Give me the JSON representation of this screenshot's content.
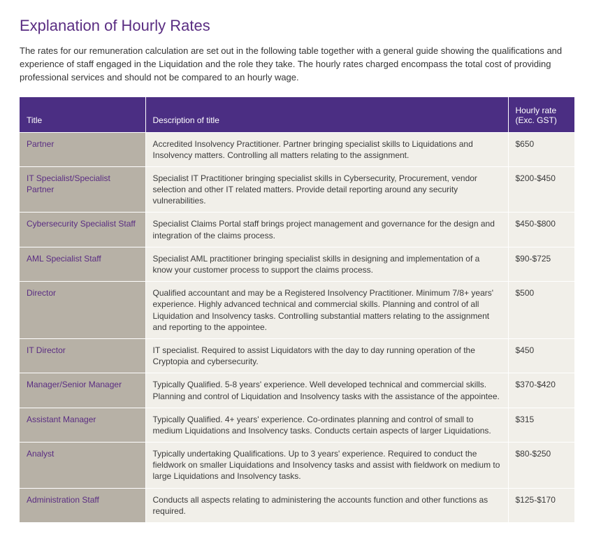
{
  "heading": "Explanation of Hourly Rates",
  "intro": "The rates for our remuneration calculation are set out in the following table together with a general guide showing the qualifications and experience of staff engaged in the Liquidation and the role they take. The hourly rates charged encompass the total cost of providing professional services and should not be compared to an hourly wage.",
  "colors": {
    "accent": "#5a2d82",
    "header_bg": "#4b2e83",
    "title_cell_bg": "#b7b1a6",
    "body_cell_bg": "#f1efe9",
    "page_bg": "#ffffff",
    "text": "#333333"
  },
  "table": {
    "columns": {
      "title": "Title",
      "description": "Description of title",
      "rate_line1": "Hourly rate",
      "rate_line2": "(Exc. GST)"
    },
    "rows": [
      {
        "title": "Partner",
        "description": "Accredited Insolvency Practitioner. Partner bringing specialist skills to Liquidations and Insolvency matters.  Controlling all matters relating to the assignment.",
        "rate": "$650"
      },
      {
        "title": "IT Specialist/Specialist Partner",
        "description": "Specialist IT Practitioner bringing specialist skills in Cybersecurity, Procurement, vendor selection and other IT related matters. Provide detail reporting around any security vulnerabilities.",
        "rate": "$200-$450"
      },
      {
        "title": "Cybersecurity Specialist Staff",
        "description": "Specialist Claims Portal staff brings project management and governance for the design and integration of the claims process.",
        "rate": "$450-$800"
      },
      {
        "title": "AML Specialist Staff",
        "description": "Specialist AML practitioner bringing specialist skills in designing and implementation of a know your customer process to support the claims process.",
        "rate": "$90-$725"
      },
      {
        "title": "Director",
        "description": "Qualified accountant and may be a Registered Insolvency Practitioner.  Minimum 7/8+ years' experience.  Highly advanced technical and commercial skills.  Planning and control of all Liquidation and Insolvency tasks.  Controlling substantial matters relating to the assignment and reporting to the appointee.",
        "rate": "$500"
      },
      {
        "title": "IT Director",
        "description": "IT specialist. Required to assist Liquidators with the day to day running operation of the Cryptopia and cybersecurity.",
        "rate": "$450"
      },
      {
        "title": "Manager/Senior Manager",
        "description": "Typically Qualified.  5-8 years' experience.  Well developed technical and commercial skills.  Planning and control of Liquidation and Insolvency tasks with the assistance of the appointee.",
        "rate": "$370-$420"
      },
      {
        "title": "Assistant Manager",
        "description": "Typically Qualified.  4+ years' experience.  Co-ordinates planning and control of small to medium Liquidations and Insolvency tasks.  Conducts certain aspects of larger Liquidations.",
        "rate": "$315"
      },
      {
        "title": "Analyst",
        "description": "Typically undertaking Qualifications.  Up to 3 years' experience.  Required to conduct the fieldwork on smaller Liquidations and Insolvency tasks and assist with fieldwork on medium to large Liquidations and Insolvency tasks.",
        "rate": "$80-$250"
      },
      {
        "title": "Administration Staff",
        "description": "Conducts all aspects relating to administering the accounts function and other functions as required.",
        "rate": "$125-$170"
      }
    ]
  }
}
